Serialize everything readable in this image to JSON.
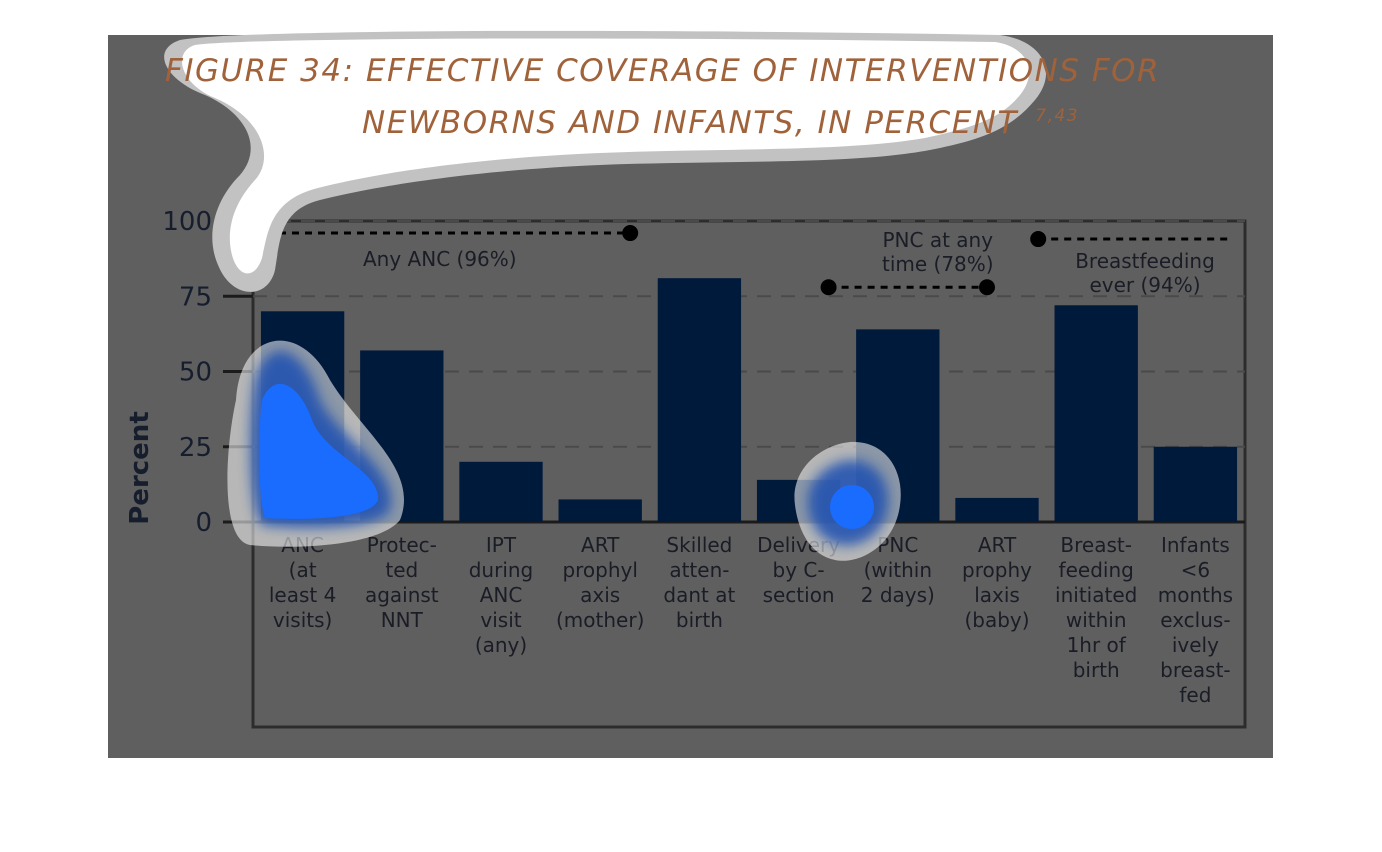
{
  "figure": {
    "title_line1": "FIGURE 34: EFFECTIVE COVERAGE OF INTERVENTIONS FOR",
    "title_line2": "NEWBORNS AND INFANTS, IN PERCENT",
    "title_sup": "7,43"
  },
  "colors": {
    "panel_bg": "#5f5f5f",
    "bar": "#001a3c",
    "title": "#a0623a",
    "highlight_blue": "#1a6cff"
  },
  "chart_data": {
    "type": "bar",
    "ylabel": "Percent",
    "xlabel": "",
    "ylim": [
      0,
      100
    ],
    "yticks": [
      "0",
      "25",
      "50",
      "75",
      "100"
    ],
    "grid": true,
    "categories": [
      [
        "ANC",
        "(at",
        "least 4",
        "visits)"
      ],
      [
        "Protec-",
        "ted",
        "against",
        "NNT"
      ],
      [
        "IPT",
        "during",
        "ANC",
        "visit",
        "(any)"
      ],
      [
        "ART",
        "prophyl",
        "axis",
        "(mother)"
      ],
      [
        "Skilled",
        "atten-",
        "dant at",
        "birth"
      ],
      [
        "Delivery",
        "by C-",
        "section"
      ],
      [
        "PNC",
        "(within",
        "2 days)"
      ],
      [
        "ART",
        "prophy",
        "laxis",
        "(baby)"
      ],
      [
        "Breast-",
        "feeding",
        "initiated",
        "within",
        "1hr of",
        "birth"
      ],
      [
        "Infants",
        "<6",
        "months",
        "exclus-",
        "ively",
        "breast-",
        "fed"
      ]
    ],
    "values": [
      70,
      57,
      20,
      7.5,
      81,
      14,
      64,
      8,
      72,
      25
    ],
    "reference_lines": [
      {
        "label": "Any ANC (96%)",
        "value": 96,
        "from_index": 0,
        "to_index": 3
      },
      {
        "label_lines": [
          "PNC at any",
          "time (78%)"
        ],
        "value": 78,
        "from_index": 5,
        "to_index": 7
      },
      {
        "label_lines": [
          "Breastfeeding",
          "ever (94%)"
        ],
        "value": 94,
        "from_index": 8,
        "to_index": 9
      }
    ]
  }
}
